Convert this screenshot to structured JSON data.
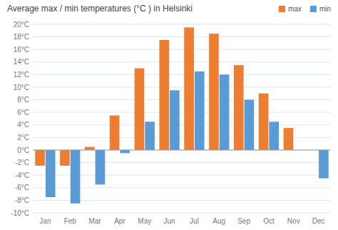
{
  "chart_data": {
    "type": "bar",
    "title": "Average max / min temperatures (°C ) in Helsinki",
    "categories": [
      "Jan",
      "Feb",
      "Mar",
      "Apr",
      "May",
      "Jun",
      "Jul",
      "Aug",
      "Sep",
      "Oct",
      "Nov",
      "Dec"
    ],
    "series": [
      {
        "name": "max",
        "color": "#ed7d31",
        "values": [
          -2.5,
          -2.5,
          0.5,
          5.5,
          13.0,
          17.5,
          19.5,
          18.5,
          13.5,
          9.0,
          3.5,
          0.0
        ]
      },
      {
        "name": "min",
        "color": "#5b9bd5",
        "values": [
          -7.5,
          -8.5,
          -5.5,
          -0.5,
          4.5,
          9.5,
          12.5,
          12.0,
          8.0,
          4.5,
          0.0,
          -4.5
        ]
      }
    ],
    "ylim": [
      -10,
      20
    ],
    "yticks": [
      {
        "value": -10,
        "label": "-10°C"
      },
      {
        "value": -8,
        "label": "-8°C"
      },
      {
        "value": -6,
        "label": "-6°C"
      },
      {
        "value": -4,
        "label": "-4°C"
      },
      {
        "value": -2,
        "label": "-2°C"
      },
      {
        "value": 0,
        "label": "0°C"
      },
      {
        "value": 2,
        "label": "2°C"
      },
      {
        "value": 4,
        "label": "4°C"
      },
      {
        "value": 6,
        "label": "6°C"
      },
      {
        "value": 8,
        "label": "8°C"
      },
      {
        "value": 10,
        "label": "10°C"
      },
      {
        "value": 12,
        "label": "12°C"
      },
      {
        "value": 14,
        "label": "14°C"
      },
      {
        "value": 16,
        "label": "16°C"
      },
      {
        "value": 18,
        "label": "18°C"
      },
      {
        "value": 20,
        "label": "20°C"
      }
    ],
    "grid": true,
    "legend": "upper right"
  }
}
